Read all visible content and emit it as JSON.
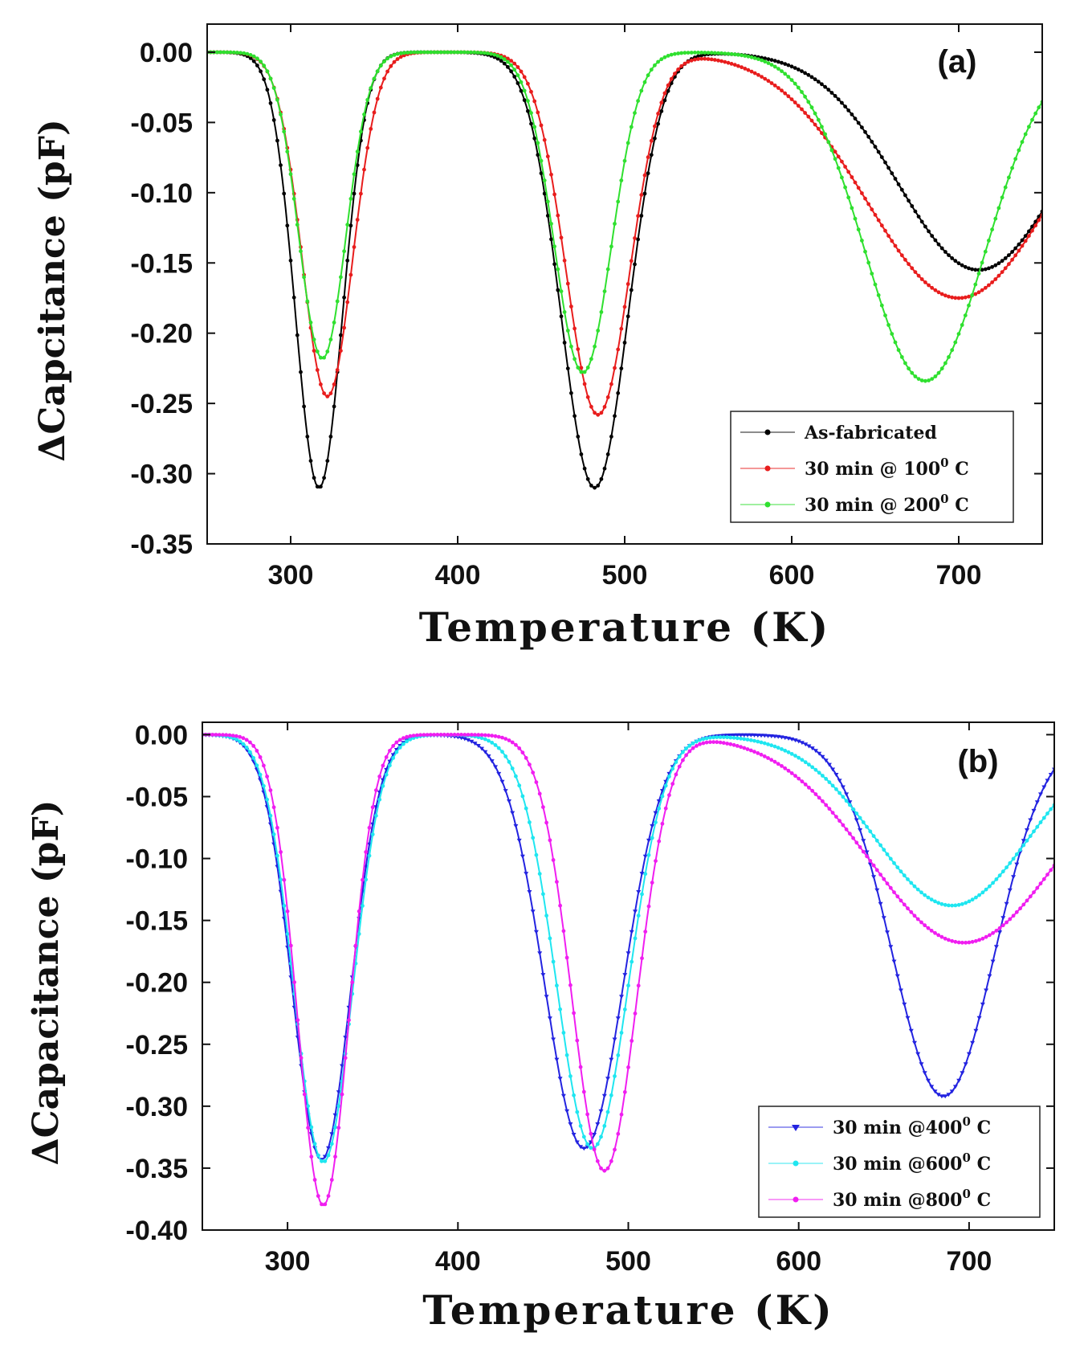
{
  "chart_data": [
    {
      "type": "line",
      "panel_label": "(a)",
      "xlabel": "Temperature (K)",
      "ylabel": "ΔCapcitance (pF)",
      "xlim": [
        250,
        750
      ],
      "ylim": [
        -0.35,
        0.02
      ],
      "xticks": [
        300,
        400,
        500,
        600,
        700
      ],
      "xtick_labels": [
        "300",
        "400",
        "500",
        "600",
        "700"
      ],
      "yticks": [
        0.0,
        -0.05,
        -0.1,
        -0.15,
        -0.2,
        -0.25,
        -0.3,
        -0.35
      ],
      "ytick_labels": [
        "0.00",
        "-0.05",
        "-0.10",
        "-0.15",
        "-0.20",
        "-0.25",
        "-0.30",
        "-0.35"
      ],
      "legend_position": "bottom-right",
      "series": [
        {
          "name": "As-fabricated",
          "legend_main": "As-fabricated",
          "legend_sup": "",
          "legend_tail": "",
          "color": "#000000",
          "marker": "dot",
          "peaks": [
            {
              "center": 317,
              "depth": 0.31,
              "width": 14
            },
            {
              "center": 482,
              "depth": 0.31,
              "width": 20
            },
            {
              "center": 712,
              "depth": 0.155,
              "width": 48
            }
          ],
          "baseline": 0.0
        },
        {
          "name": "30 min @ 100 C",
          "legend_main": "30   min @ 100",
          "legend_sup": "0",
          "legend_tail": " C",
          "color": "#e81d1d",
          "marker": "dot",
          "peaks": [
            {
              "center": 322,
              "depth": 0.245,
              "width": 15
            },
            {
              "center": 484,
              "depth": 0.258,
              "width": 19
            },
            {
              "center": 700,
              "depth": 0.175,
              "width": 55
            }
          ],
          "baseline": 0.0
        },
        {
          "name": "30 min @ 200 C",
          "legend_main": "30   min @ 200",
          "legend_sup": "0",
          "legend_tail": " C",
          "color": "#2fe02f",
          "marker": "dot",
          "peaks": [
            {
              "center": 319,
              "depth": 0.218,
              "width": 14
            },
            {
              "center": 475,
              "depth": 0.228,
              "width": 17
            },
            {
              "center": 680,
              "depth": 0.234,
              "width": 36
            }
          ],
          "baseline": 0.0
        }
      ]
    },
    {
      "type": "line",
      "panel_label": "(b)",
      "xlabel": "Temperature (K)",
      "ylabel": "ΔCapacitance (pF)",
      "xlim": [
        250,
        750
      ],
      "ylim": [
        -0.4,
        0.01
      ],
      "xticks": [
        300,
        400,
        500,
        600,
        700
      ],
      "xtick_labels": [
        "300",
        "400",
        "500",
        "600",
        "700"
      ],
      "yticks": [
        0.0,
        -0.05,
        -0.1,
        -0.15,
        -0.2,
        -0.25,
        -0.3,
        -0.35,
        -0.4
      ],
      "ytick_labels": [
        "0.00",
        "-0.05",
        "-0.10",
        "-0.15",
        "-0.20",
        "-0.25",
        "-0.30",
        "-0.35",
        "-0.40"
      ],
      "legend_position": "bottom-right",
      "series": [
        {
          "name": "30 min @400 C",
          "legend_main": "30  min @400",
          "legend_sup": "0",
          "legend_tail": " C",
          "color": "#2323e0",
          "marker": "triangle",
          "peaks": [
            {
              "center": 320,
              "depth": 0.343,
              "width": 17
            },
            {
              "center": 474,
              "depth": 0.334,
              "width": 23
            },
            {
              "center": 685,
              "depth": 0.292,
              "width": 30
            }
          ],
          "baseline": 0.0
        },
        {
          "name": "30 min @600 C",
          "legend_main": "30  min @600",
          "legend_sup": "0",
          "legend_tail": " C",
          "color": "#1fe6f0",
          "marker": "dot",
          "peaks": [
            {
              "center": 321,
              "depth": 0.345,
              "width": 17
            },
            {
              "center": 479,
              "depth": 0.334,
              "width": 21
            },
            {
              "center": 690,
              "depth": 0.138,
              "width": 45
            }
          ],
          "baseline": 0.0
        },
        {
          "name": "30 min @800 C",
          "legend_main": "30  min @800",
          "legend_sup": "0",
          "legend_tail": " C",
          "color": "#f01ef0",
          "marker": "dot",
          "peaks": [
            {
              "center": 321,
              "depth": 0.38,
              "width": 15
            },
            {
              "center": 486,
              "depth": 0.352,
              "width": 19
            },
            {
              "center": 697,
              "depth": 0.168,
              "width": 55
            }
          ],
          "baseline": 0.0
        }
      ]
    }
  ]
}
